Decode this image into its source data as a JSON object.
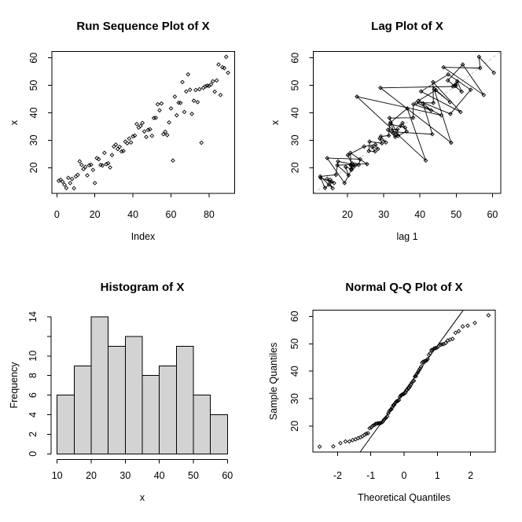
{
  "figure": {
    "background": "#ffffff",
    "foreground": "#000000",
    "marker": "open-diamond",
    "n_points": 90,
    "series_name": "X",
    "series_values": [
      15.2,
      15.6,
      14.9,
      13.8,
      12.6,
      16.3,
      14.4,
      15.9,
      12.5,
      16.8,
      17.4,
      22.3,
      21.0,
      19.5,
      20.3,
      17.2,
      20.9,
      21.1,
      19.2,
      14.4,
      23.5,
      23.1,
      21.0,
      20.8,
      25.4,
      21.3,
      21.6,
      20.1,
      24.6,
      27.7,
      28.4,
      26.8,
      27.6,
      25.9,
      26.1,
      29.5,
      28.9,
      30.6,
      29.2,
      31.4,
      31.7,
      35.9,
      34.6,
      35.2,
      36.3,
      33.2,
      31.2,
      33.8,
      34.0,
      31.6,
      38.1,
      38.2,
      43.1,
      40.9,
      43.4,
      32.2,
      33.1,
      31.9,
      36.5,
      41.6,
      22.6,
      45.9,
      39.1,
      43.7,
      43.6,
      51.2,
      40.3,
      47.8,
      54.0,
      48.4,
      39.6,
      44.4,
      48.3,
      43.9,
      48.6,
      29.1,
      49.1,
      49.6,
      49.9,
      49.8,
      50.3,
      51.5,
      47.7,
      51.8,
      57.6,
      46.5,
      56.6,
      56.3,
      60.4,
      54.6
    ]
  },
  "chart_data": [
    {
      "type": "scatter",
      "kind": "run_sequence",
      "title": "Run Sequence Plot of X",
      "xlabel": "Index",
      "ylabel": "x",
      "x_is_index_from": 1,
      "xlim": [
        -2.56,
        93.56
      ],
      "ylim": [
        10.58,
        62.32
      ],
      "xticks": [
        0,
        20,
        40,
        60,
        80
      ],
      "xtick_labels": [
        "0",
        "20",
        "40",
        "60",
        "80"
      ],
      "yticks": [
        20,
        30,
        40,
        50,
        60
      ],
      "ytick_labels": [
        "20",
        "30",
        "40",
        "50",
        "60"
      ],
      "grid": false,
      "boxed": true
    },
    {
      "type": "scatter",
      "kind": "lag_plot",
      "lag": 1,
      "title": "Lag Plot of X",
      "xlabel": "lag 1",
      "ylabel": "x",
      "xlim": [
        10.58,
        62.32
      ],
      "ylim": [
        10.58,
        62.32
      ],
      "xticks": [
        20,
        30,
        40,
        50,
        60
      ],
      "xtick_labels": [
        "20",
        "30",
        "40",
        "50",
        "60"
      ],
      "yticks": [
        20,
        30,
        40,
        50,
        60
      ],
      "ytick_labels": [
        "20",
        "30",
        "40",
        "50",
        "60"
      ],
      "connect_lines": true,
      "line_color": "#000000",
      "diagonal": {
        "style": "dashed",
        "color": "#c6c6c6"
      },
      "grid": false,
      "boxed": true
    },
    {
      "type": "bar",
      "kind": "histogram",
      "title": "Histogram of X",
      "xlabel": "x",
      "ylabel": "Frequency",
      "bin_start": 10,
      "bin_width": 5,
      "bin_edges": [
        10,
        15,
        20,
        25,
        30,
        35,
        40,
        45,
        50,
        55,
        60
      ],
      "counts": [
        6,
        9,
        14,
        11,
        12,
        8,
        9,
        11,
        6,
        4
      ],
      "bar_fill": "#d3d3d3",
      "bar_stroke": "#000000",
      "xlim": [
        10,
        60
      ],
      "ylim": [
        0,
        14
      ],
      "xticks": [
        10,
        20,
        30,
        40,
        50,
        60
      ],
      "xtick_labels": [
        "10",
        "20",
        "30",
        "40",
        "50",
        "60"
      ],
      "yticks": [
        0,
        2,
        4,
        6,
        8,
        10,
        12,
        14
      ],
      "ytick_labels": [
        "0",
        "2",
        "4",
        "6",
        "8",
        "10",
        "",
        "14"
      ],
      "grid": false,
      "boxed": false
    },
    {
      "type": "scatter",
      "kind": "qqnorm",
      "title": "Normal Q-Q Plot of X",
      "xlabel": "Theoretical Quantiles",
      "ylabel": "Sample Quantiles",
      "xlim": [
        -2.745,
        2.745
      ],
      "ylim": [
        10.58,
        62.32
      ],
      "xticks": [
        -2,
        -1,
        0,
        1,
        2
      ],
      "xtick_labels": [
        "-2",
        "-1",
        "0",
        "1",
        "2"
      ],
      "yticks": [
        20,
        30,
        40,
        50,
        60
      ],
      "ytick_labels": [
        "20",
        "30",
        "40",
        "50",
        "60"
      ],
      "qqline": {
        "style": "solid",
        "color": "#000000",
        "through": "quartiles"
      },
      "grid": false,
      "boxed": true
    }
  ]
}
